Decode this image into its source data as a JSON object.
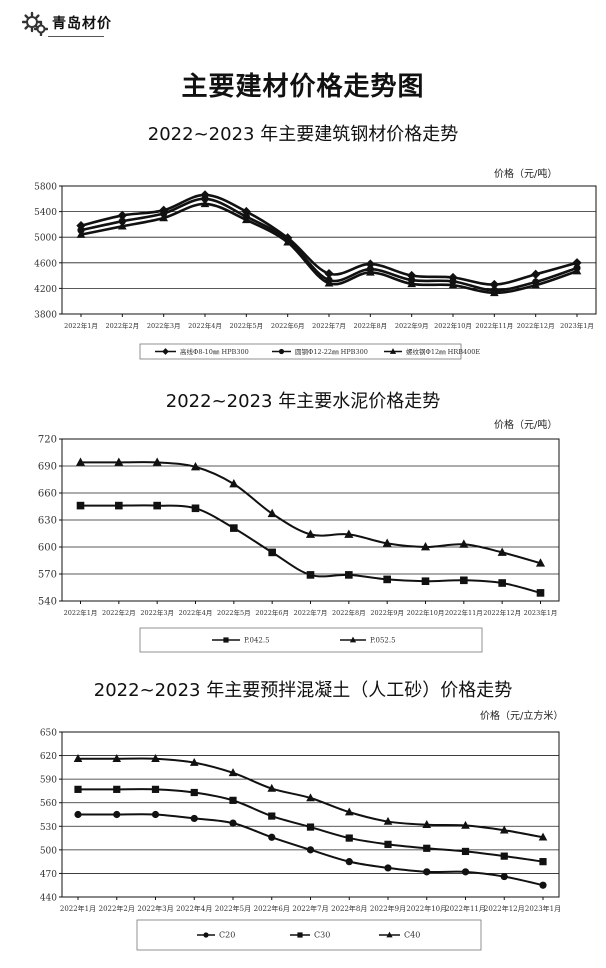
{
  "header": {
    "logo_text": "青岛材价",
    "logo_icon": "gears-icon"
  },
  "page_title": "主要建材价格走势图",
  "chart_data": [
    {
      "type": "line",
      "title": "2022~2023 年主要建筑钢材价格走势",
      "unit": "价格（元/吨）",
      "categories": [
        "2022年1月",
        "2022年2月",
        "2022年3月",
        "2022年4月",
        "2022年5月",
        "2022年6月",
        "2022年7月",
        "2022年8月",
        "2022年9月",
        "2022年10月",
        "2022年11月",
        "2022年12月",
        "2023年1月"
      ],
      "ylim": [
        3800,
        5800
      ],
      "yticks": [
        3800,
        4200,
        4600,
        5000,
        5400,
        5800
      ],
      "series": [
        {
          "name": "高线Φ8-10㎜ HPB300",
          "marker": "diamond",
          "values": [
            5180,
            5340,
            5420,
            5660,
            5400,
            4990,
            4430,
            4580,
            4400,
            4370,
            4260,
            4420,
            4600
          ]
        },
        {
          "name": "圆钢Φ12-22㎜ HPB300",
          "marker": "circle",
          "values": [
            5110,
            5250,
            5370,
            5600,
            5320,
            4960,
            4330,
            4500,
            4330,
            4310,
            4170,
            4300,
            4520
          ]
        },
        {
          "name": "螺纹钢Φ12㎜ HRB400E",
          "marker": "triangle",
          "values": [
            5040,
            5170,
            5300,
            5520,
            5270,
            4920,
            4280,
            4450,
            4270,
            4250,
            4130,
            4250,
            4470
          ]
        }
      ]
    },
    {
      "type": "line",
      "title": "2022~2023 年主要水泥价格走势",
      "unit": "价格（元/吨）",
      "categories": [
        "2022年1月",
        "2022年2月",
        "2022年3月",
        "2022年4月",
        "2022年5月",
        "2022年6月",
        "2022年7月",
        "2022年8月",
        "2022年9月",
        "2022年10月",
        "2022年11月",
        "2022年12月",
        "2023年1月"
      ],
      "ylim": [
        540,
        720
      ],
      "yticks": [
        540,
        570,
        600,
        630,
        660,
        690,
        720
      ],
      "series": [
        {
          "name": "P.042.5",
          "marker": "square",
          "values": [
            646,
            646,
            646,
            643,
            621,
            594,
            569,
            569,
            564,
            562,
            563,
            560,
            549
          ]
        },
        {
          "name": "P.052.5",
          "marker": "triangle",
          "values": [
            694,
            694,
            694,
            689,
            670,
            637,
            614,
            614,
            604,
            600,
            603,
            594,
            582
          ]
        }
      ]
    },
    {
      "type": "line",
      "title": "2022~2023 年主要预拌混凝土（人工砂）价格走势",
      "unit": "价格（元/立方米）",
      "categories": [
        "2022年1月",
        "2022年2月",
        "2022年3月",
        "2022年4月",
        "2022年5月",
        "2022年6月",
        "2022年7月",
        "2022年8月",
        "2022年9月",
        "2022年10月",
        "2022年11月",
        "2022年12月",
        "2023年1月"
      ],
      "ylim": [
        440,
        650
      ],
      "yticks": [
        440,
        470,
        500,
        530,
        560,
        590,
        620,
        650
      ],
      "series": [
        {
          "name": "C20",
          "marker": "circle",
          "values": [
            545,
            545,
            545,
            540,
            534,
            516,
            500,
            485,
            477,
            472,
            472,
            466,
            455
          ]
        },
        {
          "name": "C30",
          "marker": "square",
          "values": [
            577,
            577,
            577,
            573,
            563,
            543,
            529,
            515,
            507,
            502,
            498,
            492,
            485
          ]
        },
        {
          "name": "C40",
          "marker": "triangle",
          "values": [
            616,
            616,
            616,
            611,
            598,
            578,
            566,
            548,
            536,
            532,
            531,
            525,
            516
          ]
        }
      ]
    }
  ]
}
